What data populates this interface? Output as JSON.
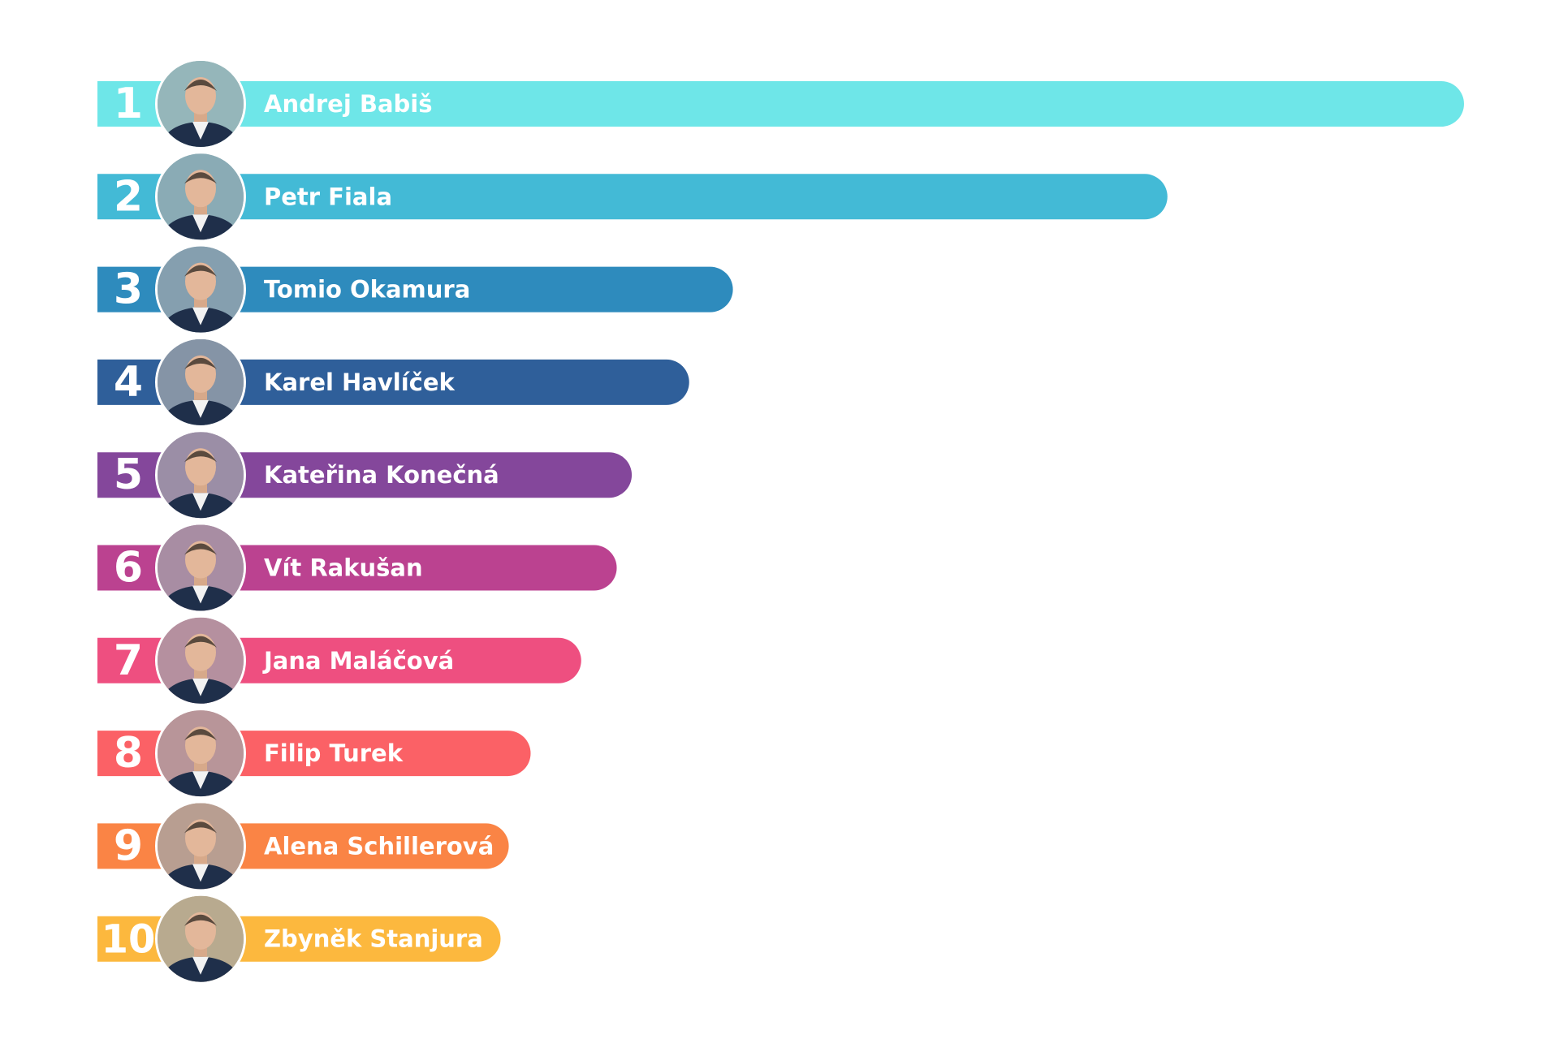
{
  "chart_data": {
    "type": "bar",
    "orientation": "horizontal",
    "categories": [
      "Andrej Babiš",
      "Petr Fiala",
      "Tomio Okamura",
      "Karel Havlíček",
      "Kateřina Konečná",
      "Vít Rakušan",
      "Jana Maláčová",
      "Filip Turek",
      "Alena Schillerová",
      "Zbyněk Stanjura"
    ],
    "ranks": [
      "1",
      "2",
      "3",
      "4",
      "5",
      "6",
      "7",
      "8",
      "9",
      "10"
    ],
    "values": [
      100,
      78.3,
      46.5,
      43.3,
      39.1,
      38,
      35.4,
      31.7,
      30.1,
      29.5
    ],
    "colors": [
      "#6ee6e8",
      "#43bad6",
      "#2e8bbd",
      "#2f5f9a",
      "#84479b",
      "#bb4290",
      "#ee4f80",
      "#fb6166",
      "#fa8445",
      "#fcb83e"
    ],
    "avatar_icons": [
      "person-photo-icon",
      "person-photo-icon",
      "person-photo-icon",
      "person-photo-icon",
      "person-photo-icon",
      "person-photo-icon",
      "person-photo-icon",
      "person-photo-icon",
      "person-photo-icon",
      "person-photo-icon"
    ],
    "grid": false,
    "legend": "none"
  }
}
